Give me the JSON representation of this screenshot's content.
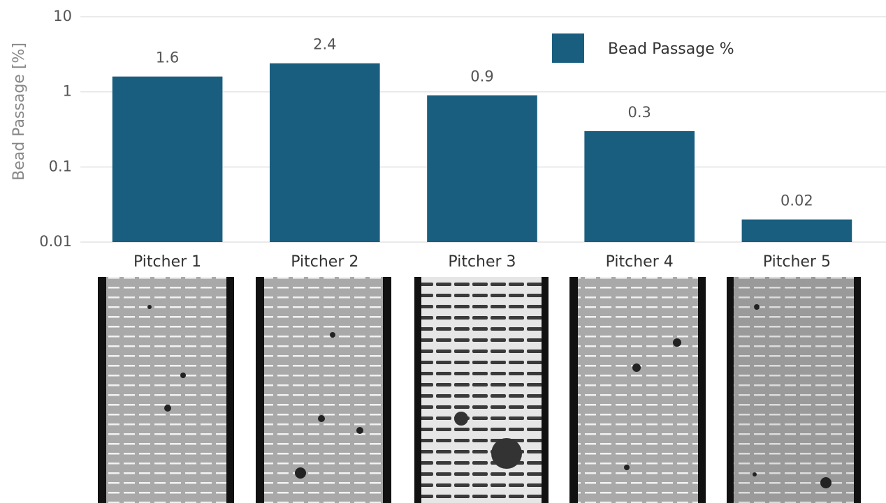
{
  "chart_data": {
    "type": "bar",
    "ylabel": "Bead Passage [%]",
    "categories": [
      "Pitcher 1",
      "Pitcher 2",
      "Pitcher 3",
      "Pitcher 4",
      "Pitcher 5"
    ],
    "series": [
      {
        "name": "Bead Passage %",
        "color": "#1a5e7f",
        "values": [
          1.6,
          2.4,
          0.9,
          0.3,
          0.02
        ]
      }
    ],
    "ylim": [
      0.01,
      10
    ],
    "yticks": [
      0.01,
      0.1,
      1,
      10
    ],
    "yscale": "log",
    "grid": true,
    "legend": "upper right"
  }
}
